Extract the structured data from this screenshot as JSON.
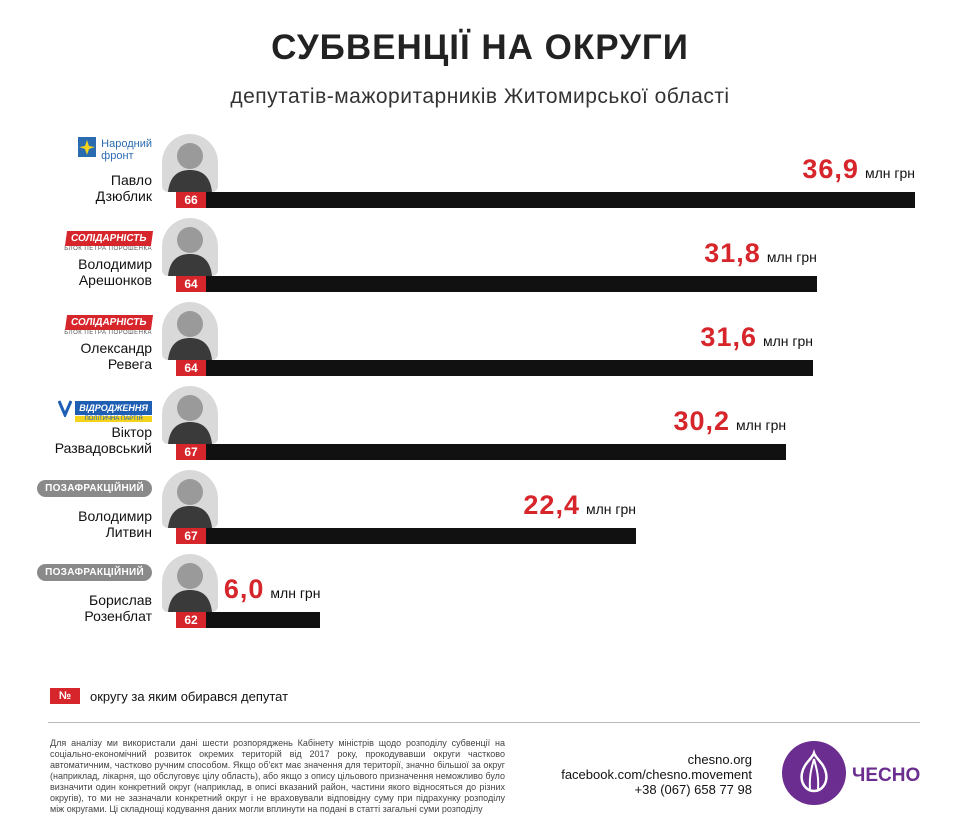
{
  "header": {
    "title": "СУБВЕНЦІЇ НА ОКРУГИ",
    "subtitle": "депутатів-мажоритарників Житомирської області"
  },
  "colors": {
    "accent": "#d6262c",
    "bar": "#111111",
    "brand": "#6b2d8f"
  },
  "unit": "млн грн",
  "chart_data": {
    "type": "bar",
    "orientation": "horizontal",
    "title": "СУБВЕНЦІЇ НА ОКРУГИ",
    "subtitle": "депутатів-мажоритарників Житомирської області",
    "categories": [
      "Павло Дзюблик",
      "Володимир Арешонков",
      "Олександр Ревега",
      "Віктор Развадовський",
      "Володимир Литвин",
      "Борислав Розенблат"
    ],
    "values": [
      36.9,
      31.8,
      31.6,
      30.2,
      22.4,
      6.0
    ],
    "value_labels": [
      "36,9",
      "31,8",
      "31,6",
      "30,2",
      "22,4",
      "6,0"
    ],
    "unit": "млн грн",
    "xlim": [
      0,
      36.9
    ],
    "grid": false
  },
  "deputies": [
    {
      "name_line1": "Павло",
      "name_line2": "Дзюблик",
      "district": "66",
      "party_type": "nf",
      "party_line1": "Народний",
      "party_line2": "фронт",
      "value_label": "36,9",
      "value": 36.9
    },
    {
      "name_line1": "Володимир",
      "name_line2": "Арешонков",
      "district": "64",
      "party_type": "sol",
      "party_line1": "СОЛІДАРНІСТЬ",
      "party_line2": "БЛОК ПЕТРА ПОРОШЕНКА",
      "value_label": "31,8",
      "value": 31.8
    },
    {
      "name_line1": "Олександр",
      "name_line2": "Ревега",
      "district": "64",
      "party_type": "sol",
      "party_line1": "СОЛІДАРНІСТЬ",
      "party_line2": "БЛОК ПЕТРА ПОРОШЕНКА",
      "value_label": "31,6",
      "value": 31.6
    },
    {
      "name_line1": "Віктор",
      "name_line2": "Развадовський",
      "district": "67",
      "party_type": "vid",
      "party_line1": "ВІДРОДЖЕННЯ",
      "party_line2": "ПОЛІТИЧНА ПАРТІЯ",
      "value_label": "30,2",
      "value": 30.2
    },
    {
      "name_line1": "Володимир",
      "name_line2": "Литвин",
      "district": "67",
      "party_type": "ind",
      "party_line1": "ПОЗАФРАКЦІЙНИЙ",
      "party_line2": "",
      "value_label": "22,4",
      "value": 22.4
    },
    {
      "name_line1": "Борислав",
      "name_line2": "Розенблат",
      "district": "62",
      "party_type": "ind",
      "party_line1": "ПОЗАФРАКЦІЙНИЙ",
      "party_line2": "",
      "value_label": "6,0",
      "value": 6.0
    }
  ],
  "legend": {
    "symbol": "№",
    "text": "округу за яким обирався депутат"
  },
  "footnote": "Для аналізу ми використали дані шести розпоряджень Кабінету міністрів щодо розподілу субвенції на соціально-економічний розвиток окремих територій від 2017 року, прокодувавши округи частково автоматичним, частково ручним способом. Якщо об'єкт має значення для території, значно більшої за округ (наприклад, лікарня, що обслуговує цілу область), або якщо з опису цільового призначення неможливо було визначити один конкретний округ (наприклад, в описі вказаний район, частини якого відносяться до різних округів), то ми не зазначали конкретний округ і не враховували відповідну суму при підрахунку розподілу між округами. Ці складнощі кодування даних могли вплинути на подані в статті загальні суми розподілу",
  "contacts": {
    "site": "chesno.org",
    "facebook": "facebook.com/chesno.movement",
    "phone": "+38 (067) 658 77 98"
  },
  "brand": {
    "name": "ЧЕСНО",
    "icon": "garlic-icon"
  }
}
